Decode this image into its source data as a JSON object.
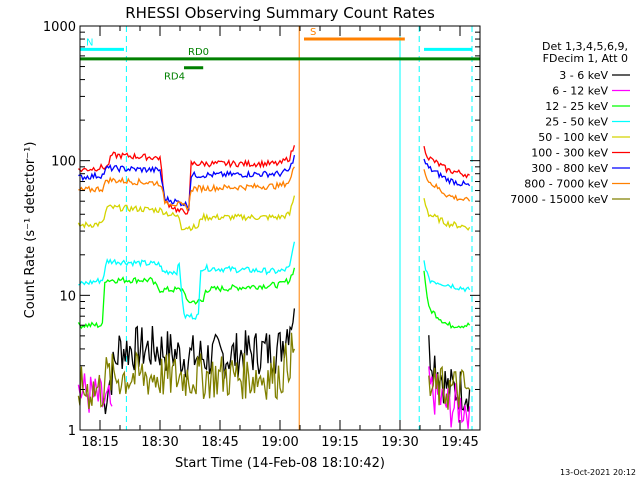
{
  "chart_data": {
    "type": "line",
    "title": "RHESSI Observing Summary Count Rates",
    "xlabel": "Start Time (14-Feb-08 18:10:42)",
    "ylabel": "Count Rate (s⁻¹ detector⁻¹)",
    "yscale": "log",
    "ylim": [
      1,
      1000
    ],
    "xlim_minutes": [
      18.1667,
      19.8333
    ],
    "x_ticks": [
      "18:15",
      "18:30",
      "18:45",
      "19:00",
      "19:15",
      "19:30",
      "19:45"
    ],
    "y_ticks": [
      "1",
      "10",
      "100",
      "1000"
    ],
    "legend_position": "right",
    "legend_header": [
      "Det 1,3,4,5,6,9,",
      "FDecim 1, Att 0"
    ],
    "footer": "13-Oct-2021 20:12",
    "flags": [
      {
        "label": "N",
        "color": "#00ffff",
        "y": 670,
        "segments": [
          [
            18.1667,
            18.35
          ],
          [
            19.6,
            19.8
          ]
        ]
      },
      {
        "label": "S",
        "color": "#ff8000",
        "y": 800,
        "segments": [
          [
            19.1,
            19.52
          ]
        ]
      },
      {
        "label": "RD0",
        "color": "#008000",
        "y": 570,
        "segments": [
          [
            18.1667,
            19.8333
          ]
        ]
      },
      {
        "label": "RD4",
        "color": "#008000",
        "y": 490,
        "segments": [
          [
            18.6,
            18.68
          ]
        ]
      }
    ],
    "vertical_lines": [
      {
        "x": 18.36,
        "color": "#00ffff",
        "style": "dashed"
      },
      {
        "x": 19.58,
        "color": "#00ffff",
        "style": "dashed"
      },
      {
        "x": 19.8,
        "color": "#00ffff",
        "style": "dashed"
      },
      {
        "x": 19.5,
        "color": "#00ffff",
        "style": "solid"
      },
      {
        "x": 19.08,
        "color": "#ff8000",
        "style": "solid"
      }
    ],
    "series": [
      {
        "name": "3 - 6 keV",
        "color": "#000000",
        "noisy": true,
        "values": [
          [
            18.26,
            1.5
          ],
          [
            18.33,
            4
          ],
          [
            18.5,
            4
          ],
          [
            18.6,
            3.5
          ],
          [
            18.75,
            3.5
          ],
          [
            19.0,
            4
          ],
          [
            19.06,
            8
          ],
          [
            19.07,
            null
          ],
          [
            19.62,
            4
          ],
          [
            19.7,
            2
          ],
          [
            19.79,
            2
          ]
        ]
      },
      {
        "name": "6 - 12 keV",
        "color": "#ff00ff",
        "noisy": true,
        "values": [
          [
            18.16,
            2
          ],
          [
            18.3,
            1.5
          ],
          [
            18.31,
            null
          ],
          [
            19.62,
            2
          ],
          [
            19.7,
            1.5
          ],
          [
            19.79,
            1.5
          ]
        ]
      },
      {
        "name": "12 - 25 keV",
        "color": "#00ff00",
        "values": [
          [
            18.16,
            6
          ],
          [
            18.26,
            6
          ],
          [
            18.27,
            13
          ],
          [
            18.46,
            13
          ],
          [
            18.5,
            11
          ],
          [
            18.6,
            11
          ],
          [
            18.61,
            9
          ],
          [
            18.68,
            9
          ],
          [
            18.69,
            11
          ],
          [
            19.0,
            12
          ],
          [
            19.04,
            13
          ],
          [
            19.06,
            16
          ],
          [
            19.07,
            null
          ],
          [
            19.6,
            15
          ],
          [
            19.62,
            8
          ],
          [
            19.7,
            6
          ],
          [
            19.79,
            6
          ]
        ]
      },
      {
        "name": "25 - 50 keV",
        "color": "#00ffff",
        "values": [
          [
            18.16,
            12
          ],
          [
            18.26,
            13
          ],
          [
            18.28,
            18
          ],
          [
            18.5,
            17
          ],
          [
            18.51,
            15
          ],
          [
            18.57,
            15
          ],
          [
            18.58,
            17
          ],
          [
            18.6,
            7
          ],
          [
            18.66,
            7
          ],
          [
            18.67,
            16
          ],
          [
            19.0,
            15
          ],
          [
            19.04,
            16
          ],
          [
            19.06,
            25
          ],
          [
            19.07,
            null
          ],
          [
            19.6,
            18
          ],
          [
            19.62,
            13
          ],
          [
            19.7,
            12
          ],
          [
            19.79,
            11
          ]
        ]
      },
      {
        "name": "50 - 100 keV",
        "color": "#d4d400",
        "values": [
          [
            18.16,
            33
          ],
          [
            18.26,
            34
          ],
          [
            18.28,
            45
          ],
          [
            18.5,
            43
          ],
          [
            18.54,
            40
          ],
          [
            18.58,
            38
          ],
          [
            18.59,
            32
          ],
          [
            18.66,
            32
          ],
          [
            18.67,
            38
          ],
          [
            19.0,
            38
          ],
          [
            19.04,
            40
          ],
          [
            19.06,
            55
          ],
          [
            19.07,
            null
          ],
          [
            19.6,
            52
          ],
          [
            19.62,
            40
          ],
          [
            19.7,
            34
          ],
          [
            19.79,
            32
          ]
        ]
      },
      {
        "name": "100 - 300 keV",
        "color": "#ff0000",
        "values": [
          [
            18.16,
            85
          ],
          [
            18.28,
            90
          ],
          [
            18.3,
            110
          ],
          [
            18.5,
            105
          ],
          [
            18.52,
            50
          ],
          [
            18.58,
            42
          ],
          [
            18.62,
            42
          ],
          [
            18.63,
            95
          ],
          [
            19.0,
            95
          ],
          [
            19.04,
            105
          ],
          [
            19.06,
            130
          ],
          [
            19.07,
            null
          ],
          [
            19.6,
            125
          ],
          [
            19.62,
            105
          ],
          [
            19.7,
            85
          ],
          [
            19.79,
            78
          ]
        ]
      },
      {
        "name": "300 - 800 keV",
        "color": "#0000ff",
        "values": [
          [
            18.16,
            75
          ],
          [
            18.26,
            78
          ],
          [
            18.28,
            88
          ],
          [
            18.5,
            85
          ],
          [
            18.52,
            52
          ],
          [
            18.6,
            48
          ],
          [
            18.62,
            46
          ],
          [
            18.63,
            78
          ],
          [
            19.0,
            80
          ],
          [
            19.04,
            85
          ],
          [
            19.06,
            110
          ],
          [
            19.07,
            null
          ],
          [
            19.6,
            100
          ],
          [
            19.62,
            88
          ],
          [
            19.7,
            72
          ],
          [
            19.79,
            65
          ]
        ]
      },
      {
        "name": "800 - 7000 keV",
        "color": "#ff8000",
        "values": [
          [
            18.16,
            60
          ],
          [
            18.26,
            62
          ],
          [
            18.28,
            72
          ],
          [
            18.5,
            68
          ],
          [
            18.52,
            50
          ],
          [
            18.6,
            46
          ],
          [
            18.62,
            45
          ],
          [
            18.63,
            62
          ],
          [
            19.0,
            65
          ],
          [
            19.04,
            70
          ],
          [
            19.06,
            90
          ],
          [
            19.07,
            null
          ],
          [
            19.6,
            88
          ],
          [
            19.62,
            70
          ],
          [
            19.7,
            55
          ],
          [
            19.79,
            50
          ]
        ]
      },
      {
        "name": "7000 - 15000 keV",
        "color": "#808000",
        "noisy": true,
        "values": [
          [
            18.16,
            2
          ],
          [
            18.26,
            2
          ],
          [
            18.27,
            2.5
          ],
          [
            19.0,
            2.5
          ],
          [
            19.06,
            4
          ],
          [
            19.07,
            null
          ],
          [
            19.62,
            2
          ],
          [
            19.7,
            2
          ],
          [
            19.79,
            2
          ]
        ]
      }
    ]
  }
}
